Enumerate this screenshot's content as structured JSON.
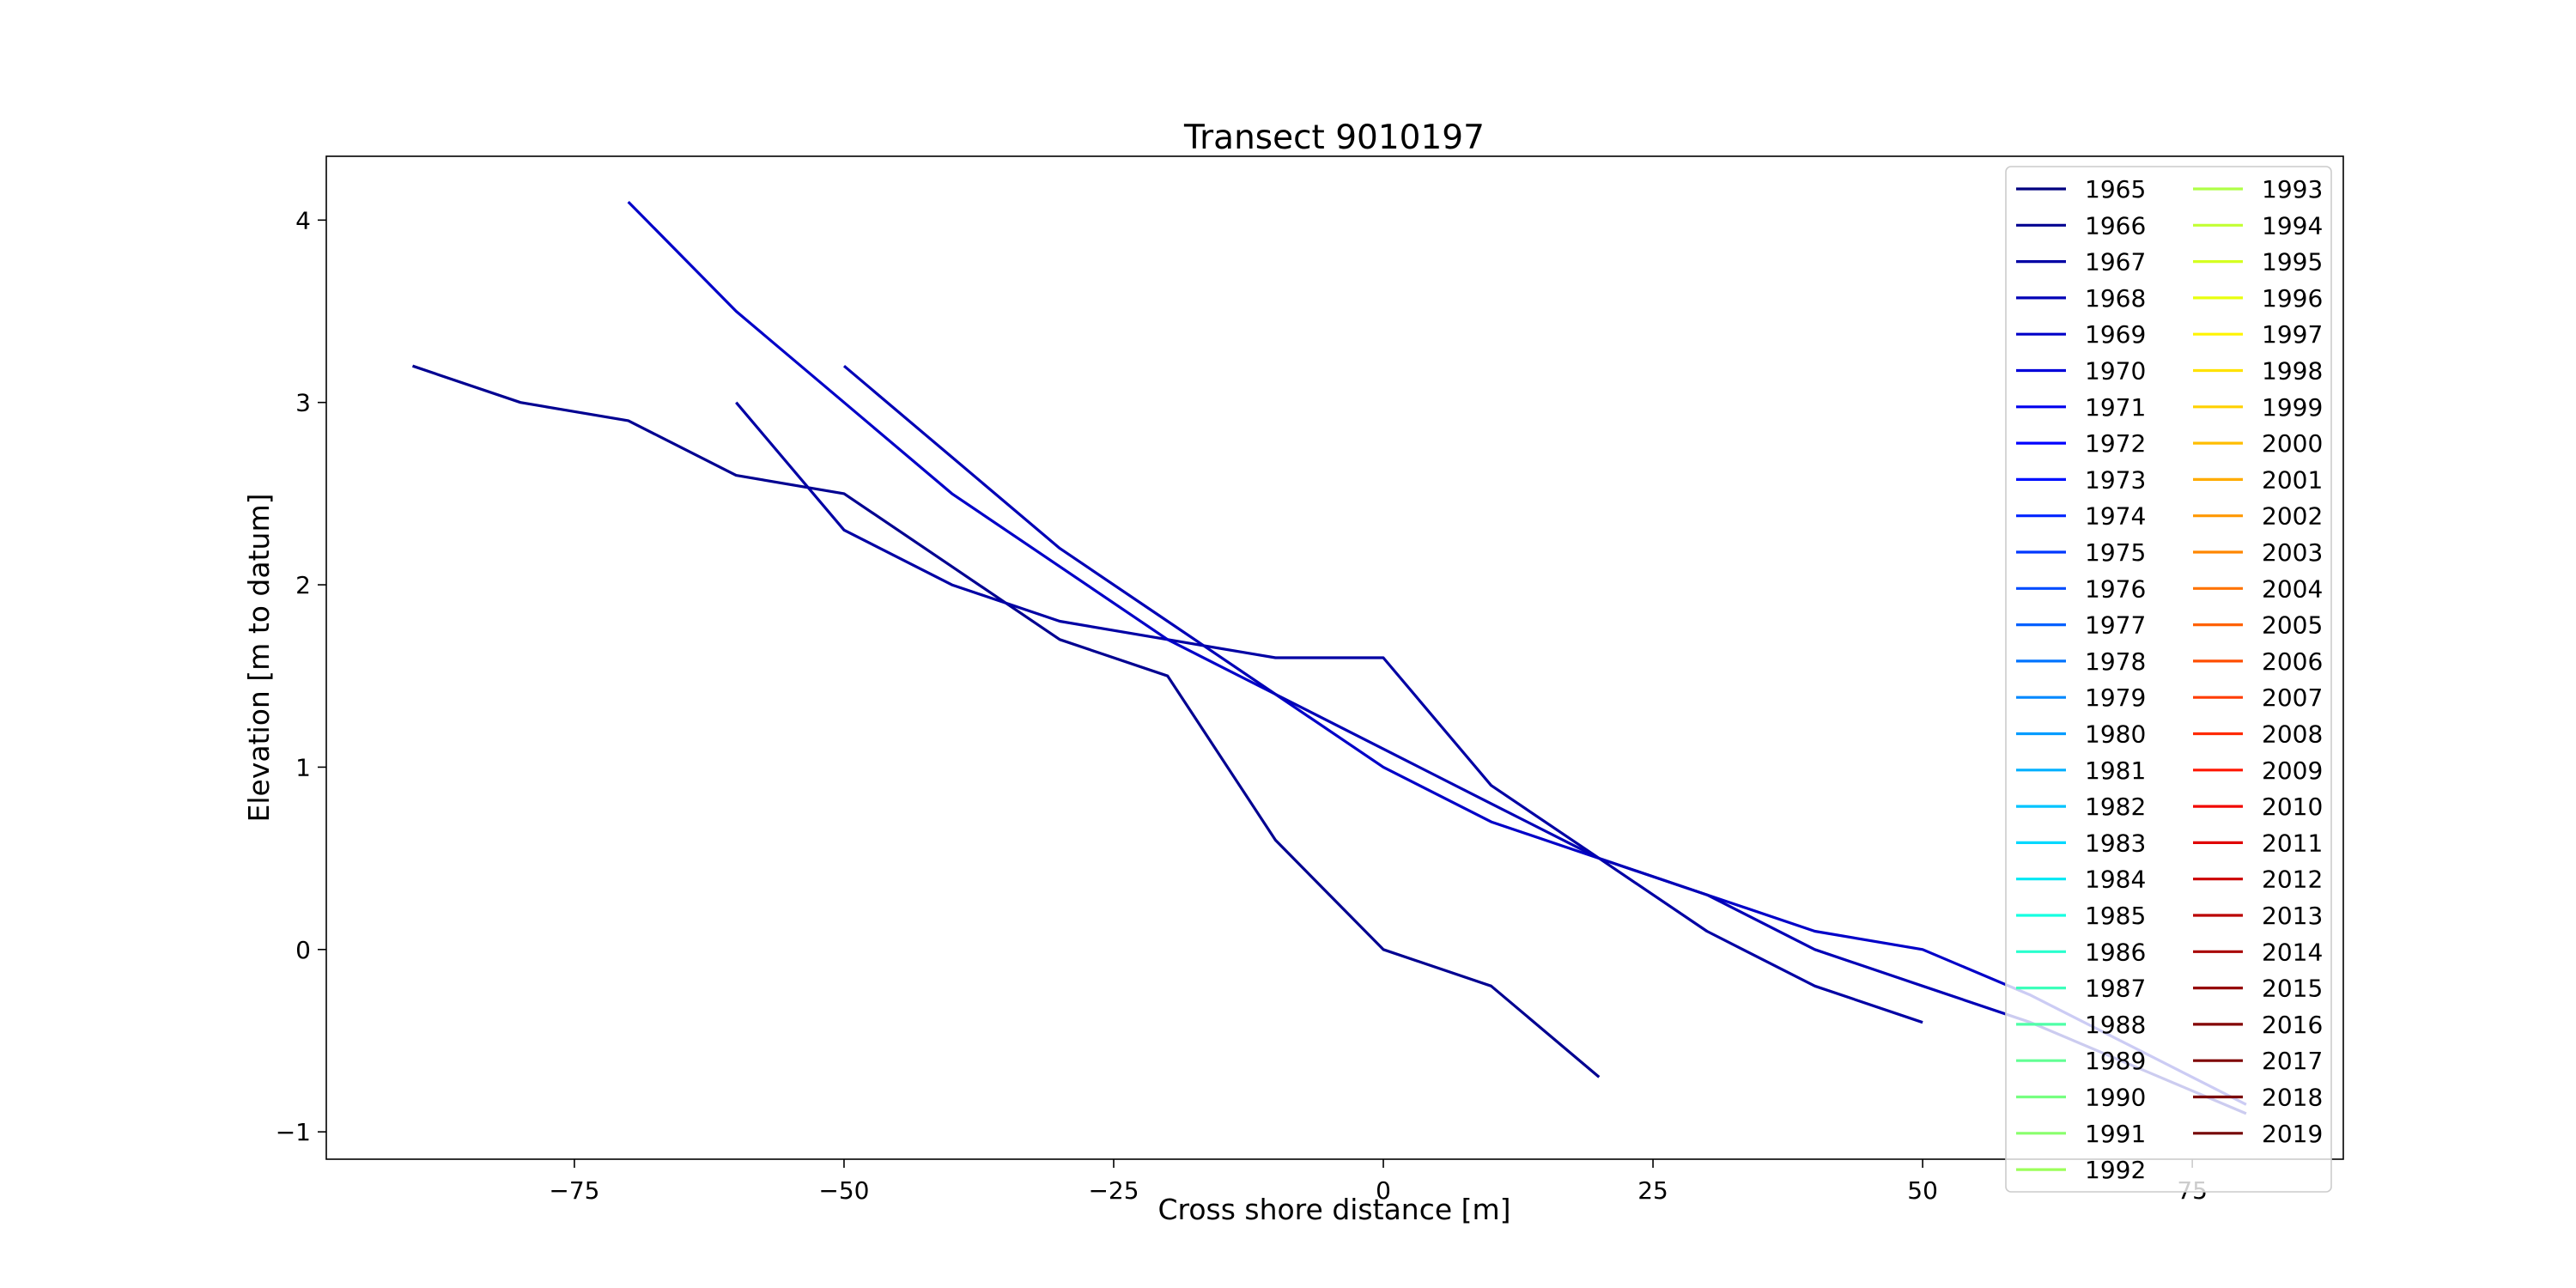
{
  "chart_data": {
    "type": "line",
    "title": "Transect 9010197",
    "xlabel": "Cross shore distance [m]",
    "ylabel": "Elevation [m to datum]",
    "xlim": [
      -98,
      89
    ],
    "ylim": [
      -1.15,
      4.35
    ],
    "xticks": [
      -75,
      -50,
      -25,
      0,
      25,
      50,
      75
    ],
    "yticks": [
      -1,
      0,
      1,
      2,
      3,
      4
    ],
    "legend_position": "top-right",
    "legend_columns": 2,
    "legend_entries": [
      {
        "label": "1965",
        "color": "#00007f"
      },
      {
        "label": "1966",
        "color": "#000091"
      },
      {
        "label": "1967",
        "color": "#0000a4"
      },
      {
        "label": "1968",
        "color": "#0000b6"
      },
      {
        "label": "1969",
        "color": "#0000c8"
      },
      {
        "label": "1970",
        "color": "#0000da"
      },
      {
        "label": "1971",
        "color": "#0000ed"
      },
      {
        "label": "1972",
        "color": "#0000ff"
      },
      {
        "label": "1973",
        "color": "#0010ff"
      },
      {
        "label": "1974",
        "color": "#0024ff"
      },
      {
        "label": "1975",
        "color": "#0038ff"
      },
      {
        "label": "1976",
        "color": "#004cff"
      },
      {
        "label": "1977",
        "color": "#0060ff"
      },
      {
        "label": "1978",
        "color": "#0074ff"
      },
      {
        "label": "1979",
        "color": "#0088ff"
      },
      {
        "label": "1980",
        "color": "#009cff"
      },
      {
        "label": "1981",
        "color": "#00b0ff"
      },
      {
        "label": "1982",
        "color": "#00c4ff"
      },
      {
        "label": "1983",
        "color": "#00d8ff"
      },
      {
        "label": "1984",
        "color": "#02e8f4"
      },
      {
        "label": "1985",
        "color": "#16ffe1"
      },
      {
        "label": "1986",
        "color": "#29ffce"
      },
      {
        "label": "1987",
        "color": "#3cffba"
      },
      {
        "label": "1988",
        "color": "#4fffa7"
      },
      {
        "label": "1989",
        "color": "#62ff94"
      },
      {
        "label": "1990",
        "color": "#76ff80"
      },
      {
        "label": "1991",
        "color": "#89ff6d"
      },
      {
        "label": "1992",
        "color": "#9cff5a"
      },
      {
        "label": "1993",
        "color": "#afff47"
      },
      {
        "label": "1994",
        "color": "#c2ff33"
      },
      {
        "label": "1995",
        "color": "#d5ff20"
      },
      {
        "label": "1996",
        "color": "#e8ff0d"
      },
      {
        "label": "1997",
        "color": "#fff400"
      },
      {
        "label": "1998",
        "color": "#ffe200"
      },
      {
        "label": "1999",
        "color": "#ffd000"
      },
      {
        "label": "2000",
        "color": "#ffbd00"
      },
      {
        "label": "2001",
        "color": "#ffab00"
      },
      {
        "label": "2002",
        "color": "#ff9800"
      },
      {
        "label": "2003",
        "color": "#ff8600"
      },
      {
        "label": "2004",
        "color": "#ff7300"
      },
      {
        "label": "2005",
        "color": "#ff6100"
      },
      {
        "label": "2006",
        "color": "#ff4e00"
      },
      {
        "label": "2007",
        "color": "#ff3c00"
      },
      {
        "label": "2008",
        "color": "#ff2a00"
      },
      {
        "label": "2009",
        "color": "#ff1700"
      },
      {
        "label": "2010",
        "color": "#f10800"
      },
      {
        "label": "2011",
        "color": "#df0000"
      },
      {
        "label": "2012",
        "color": "#cc0000"
      },
      {
        "label": "2013",
        "color": "#ba0000"
      },
      {
        "label": "2014",
        "color": "#a80000"
      },
      {
        "label": "2015",
        "color": "#950000"
      },
      {
        "label": "2016",
        "color": "#830000"
      },
      {
        "label": "2017",
        "color": "#7f0000"
      },
      {
        "label": "2018",
        "color": "#7a0000"
      },
      {
        "label": "2019",
        "color": "#750000"
      }
    ],
    "series": [
      {
        "color": "#000091",
        "points": [
          [
            -90,
            3.2
          ],
          [
            -80,
            3.0
          ],
          [
            -70,
            2.9
          ],
          [
            -60,
            2.6
          ],
          [
            -50,
            2.5
          ],
          [
            -40,
            2.1
          ],
          [
            -30,
            1.7
          ],
          [
            -20,
            1.5
          ],
          [
            -10,
            0.6
          ],
          [
            0,
            0.0
          ],
          [
            10,
            -0.2
          ],
          [
            20,
            -0.7
          ]
        ]
      },
      {
        "color": "#0000a4",
        "points": [
          [
            -60,
            3.0
          ],
          [
            -50,
            2.3
          ],
          [
            -40,
            2.0
          ],
          [
            -30,
            1.8
          ],
          [
            -20,
            1.7
          ],
          [
            -10,
            1.6
          ],
          [
            0,
            1.6
          ],
          [
            10,
            0.9
          ],
          [
            20,
            0.5
          ],
          [
            30,
            0.1
          ],
          [
            40,
            -0.2
          ],
          [
            50,
            -0.4
          ]
        ]
      },
      {
        "color": "#0000c8",
        "points": [
          [
            -70,
            4.1
          ],
          [
            -60,
            3.5
          ],
          [
            -50,
            3.0
          ],
          [
            -40,
            2.5
          ],
          [
            -30,
            2.1
          ],
          [
            -20,
            1.7
          ],
          [
            -10,
            1.4
          ],
          [
            0,
            1.0
          ],
          [
            10,
            0.7
          ],
          [
            20,
            0.5
          ],
          [
            30,
            0.3
          ],
          [
            40,
            0.1
          ],
          [
            50,
            0.0
          ],
          [
            60,
            -0.25
          ],
          [
            70,
            -0.55
          ],
          [
            80,
            -0.85
          ]
        ]
      },
      {
        "color": "#0000b6",
        "points": [
          [
            -50,
            3.2
          ],
          [
            -40,
            2.7
          ],
          [
            -30,
            2.2
          ],
          [
            -20,
            1.8
          ],
          [
            -10,
            1.4
          ],
          [
            0,
            1.1
          ],
          [
            10,
            0.8
          ],
          [
            20,
            0.5
          ],
          [
            30,
            0.3
          ],
          [
            40,
            0.0
          ],
          [
            50,
            -0.2
          ],
          [
            60,
            -0.4
          ],
          [
            70,
            -0.65
          ],
          [
            80,
            -0.9
          ]
        ]
      }
    ]
  }
}
